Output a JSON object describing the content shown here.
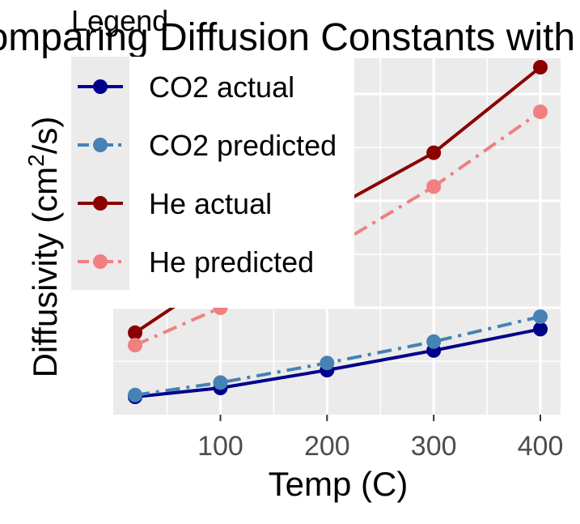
{
  "chart_data": {
    "type": "line",
    "title": "Comparing Diffusion Constants with a",
    "xlabel": "Temp (C)",
    "ylabel_main": "Diffusivity (cm",
    "ylabel_sup": "2",
    "ylabel_tail": "/s)",
    "xlim": [
      0,
      420
    ],
    "ylim": [
      0,
      1.0
    ],
    "x_ticks": [
      100,
      200,
      300,
      400
    ],
    "x_tick_labels": [
      "100",
      "200",
      "300",
      "400"
    ],
    "grid": true,
    "legend": {
      "title": "Legend",
      "position": "top-left",
      "entries": [
        "CO2 actual",
        "CO2 predicted",
        "He actual",
        "He predicted"
      ]
    },
    "series": [
      {
        "name": "CO2 actual",
        "color": "#00008b",
        "linestyle": "solid",
        "x": [
          20,
          100,
          200,
          300,
          400
        ],
        "y": [
          0.05,
          0.075,
          0.125,
          0.18,
          0.24
        ]
      },
      {
        "name": "CO2 predicted",
        "color": "#4682b4",
        "linestyle": "dashdot",
        "x": [
          20,
          100,
          200,
          300,
          400
        ],
        "y": [
          0.055,
          0.09,
          0.145,
          0.205,
          0.275
        ]
      },
      {
        "name": "He actual",
        "color": "#8b0000",
        "linestyle": "solid",
        "x": [
          20,
          100,
          200,
          300,
          400
        ],
        "y": [
          0.23,
          0.39,
          0.57,
          0.735,
          0.975
        ]
      },
      {
        "name": "He predicted",
        "color": "#f08080",
        "linestyle": "dashdot",
        "x": [
          20,
          100,
          200,
          300,
          400
        ],
        "y": [
          0.195,
          0.3,
          0.46,
          0.64,
          0.85
        ]
      }
    ]
  }
}
